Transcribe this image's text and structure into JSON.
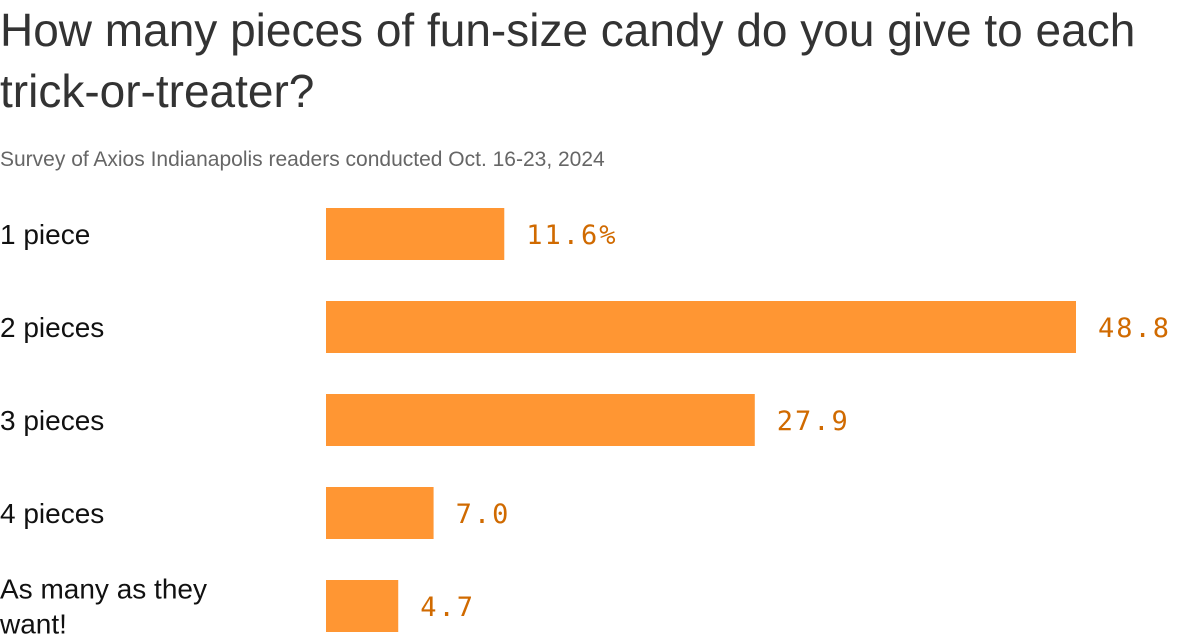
{
  "chart_data": {
    "type": "bar",
    "orientation": "horizontal",
    "title": "How many pieces of fun-size candy do you give to each trick-or-treater?",
    "subtitle": "Survey of Axios Indianapolis readers conducted Oct. 16-23, 2024",
    "categories": [
      "1 piece",
      "2 pieces",
      "3 pieces",
      "4 pieces",
      "As many as they want!"
    ],
    "values": [
      11.6,
      48.8,
      27.9,
      7.0,
      4.7
    ],
    "value_labels": [
      "11.6%",
      "48.8",
      "27.9",
      "7.0",
      "4.7"
    ],
    "unit": "%",
    "xlabel": "",
    "ylabel": "",
    "xlim": [
      0,
      48.8
    ],
    "grid": false,
    "legend": "none",
    "colors": {
      "bar": "#FF9633",
      "value_label": "#D06A00"
    }
  }
}
